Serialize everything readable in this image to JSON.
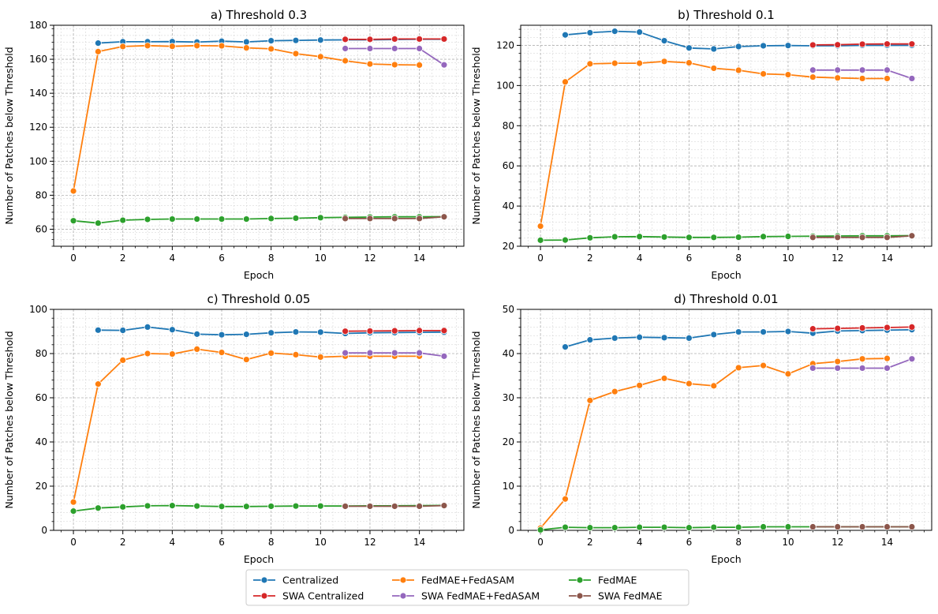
{
  "colors": {
    "Centralized": "#1f77b4",
    "SWA Centralized": "#d62728",
    "FedMAE+FedASAM": "#ff7f0e",
    "SWA FedMAE+FedASAM": "#9467bd",
    "FedMAE": "#2ca02c",
    "SWA FedMAE": "#8c564b"
  },
  "legend": [
    "Centralized",
    "SWA Centralized",
    "FedMAE+FedASAM",
    "SWA FedMAE+FedASAM",
    "FedMAE",
    "SWA FedMAE"
  ],
  "chart_data": [
    {
      "type": "line",
      "title": "a) Threshold 0.3",
      "xlabel": "Epoch",
      "ylabel": "Number of Patches below Threshold",
      "xlim": [
        -0.8,
        15.8
      ],
      "ylim": [
        50,
        180
      ],
      "xticks": [
        0,
        2,
        4,
        6,
        8,
        10,
        12,
        14
      ],
      "yticks": [
        60,
        80,
        100,
        120,
        140,
        160,
        180
      ],
      "series": [
        {
          "name": "Centralized",
          "x": [
            1,
            2,
            3,
            4,
            5,
            6,
            7,
            8,
            9,
            10,
            11,
            12,
            13,
            14,
            15
          ],
          "values": [
            169.5,
            170.3,
            170.3,
            170.4,
            170.1,
            170.6,
            170.2,
            170.9,
            171.1,
            171.3,
            171.4,
            171.4,
            171.6,
            171.8,
            171.8
          ]
        },
        {
          "name": "SWA Centralized",
          "x": [
            11,
            12,
            13,
            14,
            15
          ],
          "values": [
            171.7,
            171.7,
            171.9,
            171.9,
            171.9
          ]
        },
        {
          "name": "FedMAE+FedASAM",
          "x": [
            0,
            1,
            2,
            3,
            4,
            5,
            6,
            7,
            8,
            9,
            10,
            11,
            12,
            13,
            14
          ],
          "values": [
            82.5,
            164.5,
            167.5,
            168.0,
            167.6,
            168.0,
            167.9,
            166.7,
            166.1,
            163.3,
            161.5,
            159.1,
            157.2,
            156.8,
            156.6
          ]
        },
        {
          "name": "SWA FedMAE+FedASAM",
          "x": [
            11,
            12,
            13,
            14,
            15
          ],
          "values": [
            166.3,
            166.3,
            166.3,
            166.3,
            156.7
          ]
        },
        {
          "name": "FedMAE",
          "x": [
            0,
            1,
            2,
            3,
            4,
            5,
            6,
            7,
            8,
            9,
            10,
            11,
            12,
            13,
            14,
            15
          ],
          "values": [
            65.0,
            63.6,
            65.3,
            65.8,
            66.0,
            66.0,
            66.0,
            66.0,
            66.3,
            66.5,
            66.8,
            67.0,
            67.2,
            67.3,
            67.3,
            67.4
          ]
        },
        {
          "name": "SWA FedMAE",
          "x": [
            11,
            12,
            13,
            14,
            15
          ],
          "values": [
            66.3,
            66.3,
            66.3,
            66.3,
            67.3
          ]
        }
      ]
    },
    {
      "type": "line",
      "title": "b) Threshold 0.1",
      "xlabel": "Epoch",
      "ylabel": "Number of Patches below Threshold",
      "xlim": [
        -0.8,
        15.8
      ],
      "ylim": [
        20,
        130
      ],
      "xticks": [
        0,
        2,
        4,
        6,
        8,
        10,
        12,
        14
      ],
      "yticks": [
        20,
        40,
        60,
        80,
        100,
        120
      ],
      "series": [
        {
          "name": "Centralized",
          "x": [
            1,
            2,
            3,
            4,
            5,
            6,
            7,
            8,
            9,
            10,
            11,
            12,
            13,
            14,
            15
          ],
          "values": [
            125.2,
            126.3,
            127.0,
            126.6,
            122.3,
            118.7,
            118.2,
            119.4,
            119.8,
            119.9,
            119.8,
            119.8,
            120.0,
            120.0,
            120.0
          ]
        },
        {
          "name": "SWA Centralized",
          "x": [
            11,
            12,
            13,
            14,
            15
          ],
          "values": [
            120.2,
            120.3,
            120.6,
            120.7,
            120.7
          ]
        },
        {
          "name": "FedMAE+FedASAM",
          "x": [
            0,
            1,
            2,
            3,
            4,
            5,
            6,
            7,
            8,
            9,
            10,
            11,
            12,
            13,
            14
          ],
          "values": [
            30.0,
            101.8,
            110.8,
            111.1,
            111.1,
            112.0,
            111.3,
            108.6,
            107.6,
            105.8,
            105.4,
            104.2,
            103.8,
            103.5,
            103.5
          ]
        },
        {
          "name": "SWA FedMAE+FedASAM",
          "x": [
            11,
            12,
            13,
            14,
            15
          ],
          "values": [
            107.7,
            107.7,
            107.7,
            107.7,
            103.5
          ]
        },
        {
          "name": "FedMAE",
          "x": [
            0,
            1,
            2,
            3,
            4,
            5,
            6,
            7,
            8,
            9,
            10,
            11,
            12,
            13,
            14,
            15
          ],
          "values": [
            23.0,
            23.1,
            24.2,
            24.7,
            24.8,
            24.6,
            24.4,
            24.4,
            24.5,
            24.8,
            24.9,
            25.0,
            25.1,
            25.2,
            25.2,
            25.3
          ]
        },
        {
          "name": "SWA FedMAE",
          "x": [
            11,
            12,
            13,
            14,
            15
          ],
          "values": [
            24.4,
            24.4,
            24.4,
            24.4,
            25.2
          ]
        }
      ]
    },
    {
      "type": "line",
      "title": "c) Threshold 0.05",
      "xlabel": "Epoch",
      "ylabel": "Number of Patches below Threshold",
      "xlim": [
        -0.8,
        15.8
      ],
      "ylim": [
        0,
        100
      ],
      "xticks": [
        0,
        2,
        4,
        6,
        8,
        10,
        12,
        14
      ],
      "yticks": [
        0,
        20,
        40,
        60,
        80,
        100
      ],
      "series": [
        {
          "name": "Centralized",
          "x": [
            1,
            2,
            3,
            4,
            5,
            6,
            7,
            8,
            9,
            10,
            11,
            12,
            13,
            14,
            15
          ],
          "values": [
            90.6,
            90.5,
            92.0,
            90.8,
            88.8,
            88.5,
            88.7,
            89.4,
            89.8,
            89.7,
            89.1,
            89.4,
            89.5,
            89.6,
            89.7
          ]
        },
        {
          "name": "SWA Centralized",
          "x": [
            11,
            12,
            13,
            14,
            15
          ],
          "values": [
            90.1,
            90.2,
            90.3,
            90.4,
            90.4
          ]
        },
        {
          "name": "FedMAE+FedASAM",
          "x": [
            0,
            1,
            2,
            3,
            4,
            5,
            6,
            7,
            8,
            9,
            10,
            11,
            12,
            13,
            14
          ],
          "values": [
            12.8,
            66.2,
            77.0,
            80.0,
            79.8,
            82.0,
            80.5,
            77.3,
            80.2,
            79.5,
            78.4,
            78.8,
            78.8,
            78.8,
            78.8
          ]
        },
        {
          "name": "SWA FedMAE+FedASAM",
          "x": [
            11,
            12,
            13,
            14,
            15
          ],
          "values": [
            80.3,
            80.3,
            80.3,
            80.3,
            78.8
          ]
        },
        {
          "name": "FedMAE",
          "x": [
            0,
            1,
            2,
            3,
            4,
            5,
            6,
            7,
            8,
            9,
            10,
            11,
            12,
            13,
            14,
            15
          ],
          "values": [
            8.7,
            10.1,
            10.6,
            11.1,
            11.2,
            11.0,
            10.8,
            10.8,
            10.9,
            11.0,
            11.0,
            11.0,
            11.1,
            11.1,
            11.2,
            11.3
          ]
        },
        {
          "name": "SWA FedMAE",
          "x": [
            11,
            12,
            13,
            14,
            15
          ],
          "values": [
            10.9,
            10.9,
            10.9,
            10.9,
            11.2
          ]
        }
      ]
    },
    {
      "type": "line",
      "title": "d) Threshold 0.01",
      "xlabel": "Epoch",
      "ylabel": "Number of Patches below Threshold",
      "xlim": [
        -0.8,
        15.8
      ],
      "ylim": [
        0,
        50
      ],
      "xticks": [
        0,
        2,
        4,
        6,
        8,
        10,
        12,
        14
      ],
      "yticks": [
        0,
        10,
        20,
        30,
        40,
        50
      ],
      "series": [
        {
          "name": "Centralized",
          "x": [
            1,
            2,
            3,
            4,
            5,
            6,
            7,
            8,
            9,
            10,
            11,
            12,
            13,
            14,
            15
          ],
          "values": [
            41.5,
            43.1,
            43.5,
            43.7,
            43.6,
            43.5,
            44.3,
            44.9,
            44.9,
            45.0,
            44.6,
            45.1,
            45.2,
            45.3,
            45.4
          ]
        },
        {
          "name": "SWA Centralized",
          "x": [
            11,
            12,
            13,
            14,
            15
          ],
          "values": [
            45.6,
            45.7,
            45.8,
            45.9,
            46.0
          ]
        },
        {
          "name": "FedMAE+FedASAM",
          "x": [
            0,
            1,
            2,
            3,
            4,
            5,
            6,
            7,
            8,
            9,
            10,
            11,
            12,
            13,
            14
          ],
          "values": [
            0.5,
            7.1,
            29.4,
            31.4,
            32.8,
            34.4,
            33.2,
            32.7,
            36.8,
            37.3,
            35.4,
            37.7,
            38.2,
            38.8,
            38.9
          ]
        },
        {
          "name": "SWA FedMAE+FedASAM",
          "x": [
            11,
            12,
            13,
            14,
            15
          ],
          "values": [
            36.7,
            36.7,
            36.7,
            36.7,
            38.8
          ]
        },
        {
          "name": "FedMAE",
          "x": [
            0,
            1,
            2,
            3,
            4,
            5,
            6,
            7,
            8,
            9,
            10,
            11,
            12,
            13,
            14,
            15
          ],
          "values": [
            0.1,
            0.7,
            0.6,
            0.6,
            0.7,
            0.7,
            0.6,
            0.7,
            0.7,
            0.8,
            0.8,
            0.8,
            0.8,
            0.8,
            0.8,
            0.8
          ]
        },
        {
          "name": "SWA FedMAE",
          "x": [
            11,
            12,
            13,
            14,
            15
          ],
          "values": [
            0.8,
            0.8,
            0.8,
            0.8,
            0.8
          ]
        }
      ]
    }
  ]
}
